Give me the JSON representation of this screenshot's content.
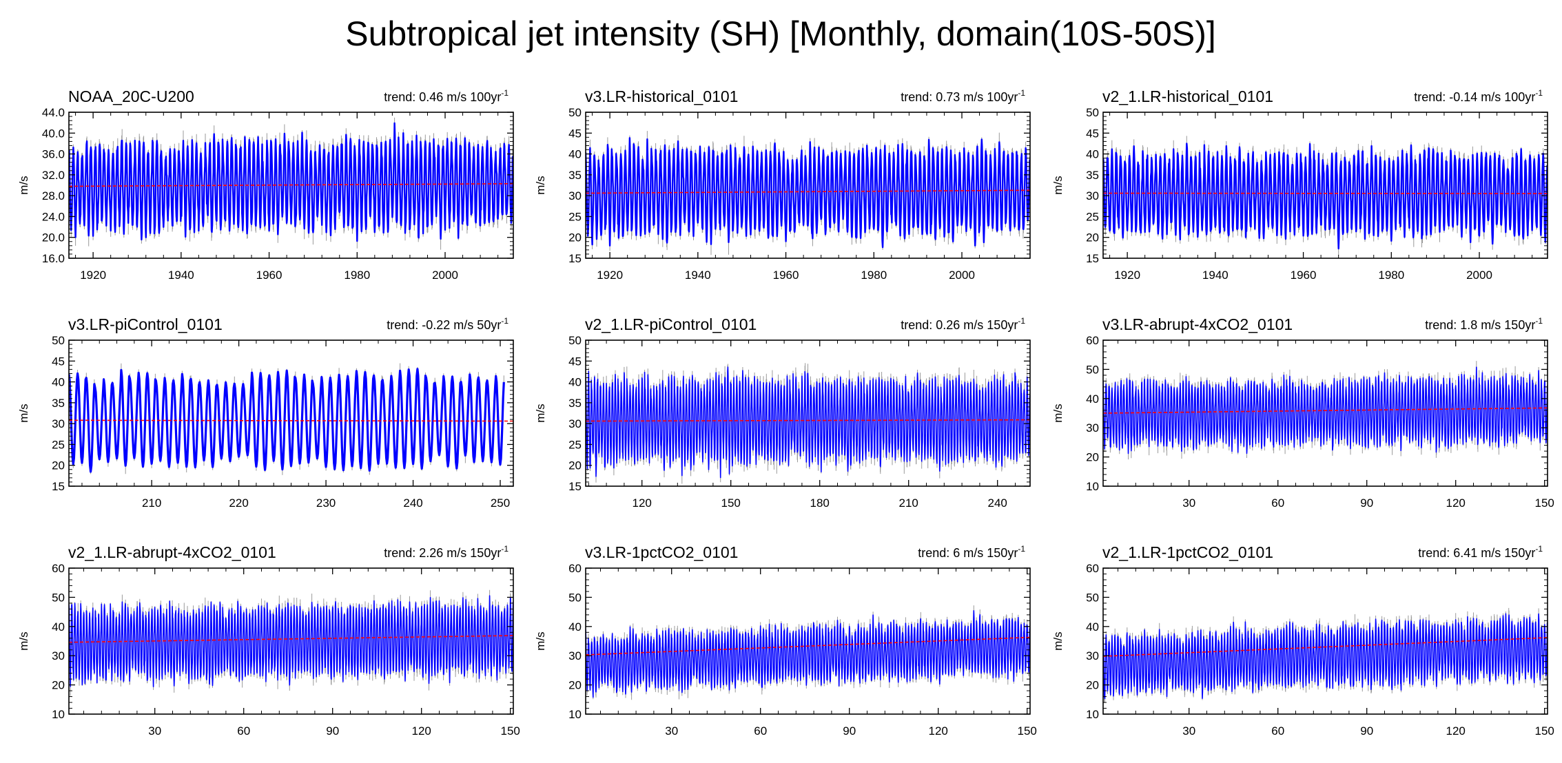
{
  "figure": {
    "title": "Subtropical jet intensity (SH) [Monthly, domain(10S-50S)]"
  },
  "colors": {
    "series": "#0000ff",
    "spread": "#9a9a9a",
    "trend_line": "#ff0000",
    "axes": "#000000"
  },
  "chart_data": [
    {
      "type": "line",
      "title": "NOAA_20C-U200",
      "trend_text": "trend: 0.46 m/s 100yr",
      "trend_sup": "-1",
      "ylabel": "m/s",
      "xlim": [
        1914.5,
        2015.5
      ],
      "ylim": [
        16,
        44
      ],
      "xticks": [
        1920,
        1940,
        1960,
        1980,
        2000
      ],
      "xtick_labels": [
        "1920",
        "1940",
        "1960",
        "1980",
        "2000"
      ],
      "yticks": [
        16,
        20,
        24,
        28,
        32,
        36,
        40,
        44
      ],
      "ytick_labels": [
        "16.0",
        "20.0",
        "24.0",
        "28.0",
        "32.0",
        "36.0",
        "40.0",
        "44.0"
      ],
      "series": {
        "x_start": 1914.5,
        "cycles": 101,
        "mean": 30.0,
        "amplitude": 7.5,
        "noise": 2.0,
        "trend": 0.46,
        "detail": "seasonal"
      },
      "trend_line": {
        "start": 29.8,
        "end": 30.3
      }
    },
    {
      "type": "line",
      "title": "v3.LR-historical_0101",
      "trend_text": "trend: 0.73 m/s 100yr",
      "trend_sup": "-1",
      "ylabel": "m/s",
      "xlim": [
        1914.5,
        2015.5
      ],
      "ylim": [
        15,
        50
      ],
      "xticks": [
        1920,
        1940,
        1960,
        1980,
        2000
      ],
      "xtick_labels": [
        "1920",
        "1940",
        "1960",
        "1980",
        "2000"
      ],
      "yticks": [
        15,
        20,
        25,
        30,
        35,
        40,
        45,
        50
      ],
      "ytick_labels": [
        "15",
        "20",
        "25",
        "30",
        "35",
        "40",
        "45",
        "50"
      ],
      "series": {
        "x_start": 1914.5,
        "cycles": 101,
        "mean": 31.0,
        "amplitude": 9.5,
        "noise": 2.3,
        "trend": 0.73,
        "detail": "seasonal"
      },
      "trend_line": {
        "start": 30.6,
        "end": 31.3
      }
    },
    {
      "type": "line",
      "title": "v2_1.LR-historical_0101",
      "trend_text": "trend: -0.14 m/s 100yr",
      "trend_sup": "-1",
      "ylabel": "m/s",
      "xlim": [
        1914.5,
        2015.5
      ],
      "ylim": [
        15,
        50
      ],
      "xticks": [
        1920,
        1940,
        1960,
        1980,
        2000
      ],
      "xtick_labels": [
        "1920",
        "1940",
        "1960",
        "1980",
        "2000"
      ],
      "yticks": [
        15,
        20,
        25,
        30,
        35,
        40,
        45,
        50
      ],
      "ytick_labels": [
        "15",
        "20",
        "25",
        "30",
        "35",
        "40",
        "45",
        "50"
      ],
      "series": {
        "x_start": 1914.5,
        "cycles": 101,
        "mean": 30.5,
        "amplitude": 9.0,
        "noise": 2.3,
        "trend": -0.14,
        "detail": "seasonal"
      },
      "trend_line": {
        "start": 30.6,
        "end": 30.5
      }
    },
    {
      "type": "line",
      "title": "v3.LR-piControl_0101",
      "trend_text": "trend: -0.22 m/s 50yr",
      "trend_sup": "-1",
      "ylabel": "m/s",
      "xlim": [
        200.5,
        251.5
      ],
      "ylim": [
        15,
        50
      ],
      "xticks": [
        210,
        220,
        230,
        240,
        250
      ],
      "xtick_labels": [
        "210",
        "220",
        "230",
        "240",
        "250"
      ],
      "yticks": [
        15,
        20,
        25,
        30,
        35,
        40,
        45,
        50
      ],
      "ytick_labels": [
        "15",
        "20",
        "25",
        "30",
        "35",
        "40",
        "45",
        "50"
      ],
      "series": {
        "x_start": 200.5,
        "cycles": 50,
        "mean": 30.7,
        "amplitude": 10.0,
        "noise": 1.4,
        "trend": -0.22,
        "detail": "smooth"
      },
      "trend_line": {
        "start": 30.8,
        "end": 30.6
      }
    },
    {
      "type": "line",
      "title": "v2_1.LR-piControl_0101",
      "trend_text": "trend: 0.26 m/s 150yr",
      "trend_sup": "-1",
      "ylabel": "m/s",
      "xlim": [
        101,
        251
      ],
      "ylim": [
        15,
        50
      ],
      "xticks": [
        120,
        150,
        180,
        210,
        240
      ],
      "xtick_labels": [
        "120",
        "150",
        "180",
        "210",
        "240"
      ],
      "yticks": [
        15,
        20,
        25,
        30,
        35,
        40,
        45,
        50
      ],
      "ytick_labels": [
        "15",
        "20",
        "25",
        "30",
        "35",
        "40",
        "45",
        "50"
      ],
      "series": {
        "x_start": 101,
        "cycles": 150,
        "mean": 30.7,
        "amplitude": 9.0,
        "noise": 2.5,
        "trend": 0.26,
        "detail": "dense"
      },
      "trend_line": {
        "start": 30.6,
        "end": 30.9
      }
    },
    {
      "type": "line",
      "title": "v3.LR-abrupt-4xCO2_0101",
      "trend_text": "trend: 1.8 m/s 150yr",
      "trend_sup": "-1",
      "ylabel": "m/s",
      "xlim": [
        1,
        151
      ],
      "ylim": [
        10,
        60
      ],
      "xticks": [
        30,
        60,
        90,
        120,
        150
      ],
      "xtick_labels": [
        "30",
        "60",
        "90",
        "120",
        "150"
      ],
      "yticks": [
        10,
        20,
        30,
        40,
        50,
        60
      ],
      "ytick_labels": [
        "10",
        "20",
        "30",
        "40",
        "50",
        "60"
      ],
      "series": {
        "x_start": 1,
        "cycles": 150,
        "mean": 35.0,
        "amplitude": 10.0,
        "noise": 2.8,
        "trend": 1.8,
        "detail": "dense"
      },
      "trend_line": {
        "start": 35.0,
        "end": 36.8
      }
    },
    {
      "type": "line",
      "title": "v2_1.LR-abrupt-4xCO2_0101",
      "trend_text": "trend: 2.26 m/s 150yr",
      "trend_sup": "-1",
      "ylabel": "m/s",
      "xlim": [
        1,
        151
      ],
      "ylim": [
        10,
        60
      ],
      "xticks": [
        30,
        60,
        90,
        120,
        150
      ],
      "xtick_labels": [
        "30",
        "60",
        "90",
        "120",
        "150"
      ],
      "yticks": [
        10,
        20,
        30,
        40,
        50,
        60
      ],
      "ytick_labels": [
        "10",
        "20",
        "30",
        "40",
        "50",
        "60"
      ],
      "series": {
        "x_start": 1,
        "cycles": 150,
        "mean": 34.8,
        "amplitude": 11.0,
        "noise": 2.8,
        "trend": 2.26,
        "detail": "dense"
      },
      "trend_line": {
        "start": 34.6,
        "end": 36.9
      }
    },
    {
      "type": "line",
      "title": "v3.LR-1pctCO2_0101",
      "trend_text": "trend: 6 m/s 150yr",
      "trend_sup": "-1",
      "ylabel": "m/s",
      "xlim": [
        1,
        151
      ],
      "ylim": [
        10,
        60
      ],
      "xticks": [
        30,
        60,
        90,
        120,
        150
      ],
      "xtick_labels": [
        "30",
        "60",
        "90",
        "120",
        "150"
      ],
      "yticks": [
        10,
        20,
        30,
        40,
        50,
        60
      ],
      "ytick_labels": [
        "10",
        "20",
        "30",
        "40",
        "50",
        "60"
      ],
      "series": {
        "x_start": 1,
        "cycles": 150,
        "mean": 30.3,
        "amplitude": 8.5,
        "noise": 2.6,
        "trend": 6.0,
        "detail": "dense"
      },
      "trend_line": {
        "start": 30.3,
        "end": 36.3
      }
    },
    {
      "type": "line",
      "title": "v2_1.LR-1pctCO2_0101",
      "trend_text": "trend: 6.41 m/s 150yr",
      "trend_sup": "-1",
      "ylabel": "m/s",
      "xlim": [
        1,
        151
      ],
      "ylim": [
        10,
        60
      ],
      "xticks": [
        30,
        60,
        90,
        120,
        150
      ],
      "xtick_labels": [
        "30",
        "60",
        "90",
        "120",
        "150"
      ],
      "yticks": [
        10,
        20,
        30,
        40,
        50,
        60
      ],
      "ytick_labels": [
        "10",
        "20",
        "30",
        "40",
        "50",
        "60"
      ],
      "series": {
        "x_start": 1,
        "cycles": 150,
        "mean": 29.8,
        "amplitude": 9.0,
        "noise": 2.6,
        "trend": 6.41,
        "detail": "dense"
      },
      "trend_line": {
        "start": 29.8,
        "end": 36.2
      }
    }
  ]
}
